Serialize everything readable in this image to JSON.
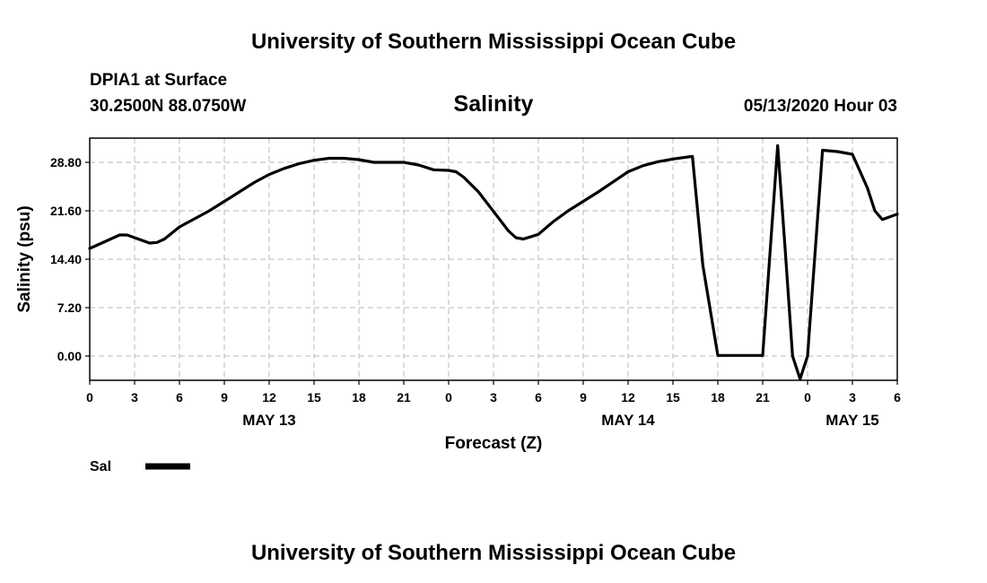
{
  "header": {
    "title": "University of Southern Mississippi Ocean Cube",
    "station": "DPIA1 at Surface",
    "coords": "30.2500N 88.0750W",
    "timestamp": "05/13/2020 Hour 03"
  },
  "footer": {
    "title": "University of Southern Mississippi Ocean Cube"
  },
  "chart_data": {
    "type": "line",
    "title": "Salinity",
    "xlabel": "Forecast (Z)",
    "ylabel": "Salinity (psu)",
    "x_unit": "forecast hour from May 13 00Z",
    "xlim": [
      0,
      54
    ],
    "ylim": [
      -3.6,
      32.4
    ],
    "y_ticks": [
      0.0,
      7.2,
      14.4,
      21.6,
      28.8
    ],
    "y_tick_labels": [
      "0.00",
      "7.20",
      "14.40",
      "21.60",
      "28.80"
    ],
    "x_ticks": [
      0,
      3,
      6,
      9,
      12,
      15,
      18,
      21,
      24,
      27,
      30,
      33,
      36,
      39,
      42,
      45,
      48,
      51,
      54
    ],
    "x_tick_labels": [
      "0",
      "3",
      "6",
      "9",
      "12",
      "15",
      "18",
      "21",
      "0",
      "3",
      "6",
      "9",
      "12",
      "15",
      "18",
      "21",
      "0",
      "3",
      "6"
    ],
    "day_labels": [
      {
        "label": "MAY 13",
        "x": 12
      },
      {
        "label": "MAY 14",
        "x": 36
      },
      {
        "label": "MAY 15",
        "x": 51
      }
    ],
    "grid": true,
    "legend_position": "bottom-left",
    "series": [
      {
        "name": "Sal",
        "x": [
          0,
          1,
          2,
          2.5,
          3,
          4,
          4.5,
          5,
          6,
          7,
          8,
          9,
          10,
          11,
          12,
          13,
          14,
          15,
          16,
          17,
          18,
          19,
          20,
          21,
          22,
          23,
          24,
          24.5,
          25,
          26,
          27,
          28,
          28.5,
          29,
          30,
          31,
          32,
          33,
          34,
          35,
          36,
          37,
          38,
          39,
          40,
          40.3,
          41,
          42,
          43,
          44,
          44.5,
          45,
          46,
          46.5,
          47,
          47.5,
          48,
          49,
          50,
          51,
          52,
          52.5,
          53,
          54
        ],
        "y": [
          16.0,
          17.0,
          18.0,
          18.0,
          17.6,
          16.8,
          16.9,
          17.4,
          19.2,
          20.4,
          21.6,
          23.0,
          24.4,
          25.8,
          27.0,
          27.9,
          28.6,
          29.1,
          29.4,
          29.4,
          29.2,
          28.8,
          28.8,
          28.8,
          28.4,
          27.7,
          27.6,
          27.4,
          26.6,
          24.4,
          21.5,
          18.6,
          17.6,
          17.4,
          18.1,
          20.0,
          21.6,
          23.0,
          24.4,
          25.9,
          27.4,
          28.3,
          28.9,
          29.3,
          29.6,
          29.7,
          13.5,
          0.1,
          0.1,
          0.1,
          0.1,
          0.1,
          31.3,
          16.0,
          0.0,
          -3.4,
          0.0,
          30.6,
          30.4,
          30.0,
          25.0,
          21.6,
          20.3,
          21.1
        ]
      }
    ]
  }
}
